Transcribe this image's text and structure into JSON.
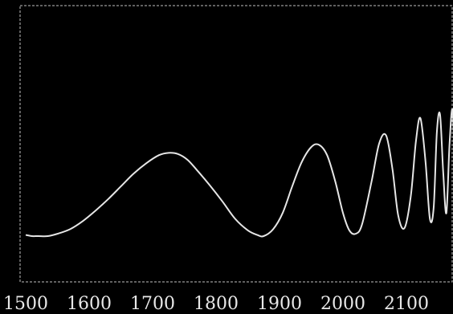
{
  "chart_data": {
    "type": "line",
    "title": "",
    "xlabel": "",
    "ylabel": "",
    "xlim": [
      1500,
      2180
    ],
    "ylim": [
      0,
      1
    ],
    "x_ticks": [
      1500,
      1600,
      1700,
      1800,
      1900,
      2000,
      2100
    ],
    "x_tick_labels": [
      "1500",
      "1600",
      "1700",
      "1800",
      "1900",
      "2000",
      "2100"
    ],
    "grid": false,
    "legend": "none",
    "frame_style": "dashed",
    "colors": {
      "background": "#000000",
      "line": "#e6e6e6",
      "frame": "#bfbfbf",
      "tick_text": "#e8e8e8"
    },
    "series": [
      {
        "x": [
          1500,
          1510,
          1520,
          1535,
          1550,
          1570,
          1590,
          1610,
          1630,
          1650,
          1670,
          1690,
          1710,
          1725,
          1740,
          1755,
          1770,
          1790,
          1810,
          1830,
          1850,
          1865,
          1875,
          1890,
          1905,
          1920,
          1935,
          1950,
          1962,
          1975,
          1988,
          2000,
          2010,
          2020,
          2030,
          2045,
          2057,
          2068,
          2078,
          2087,
          2097,
          2107,
          2115,
          2122,
          2130,
          2137,
          2143,
          2148,
          2153,
          2158,
          2163,
          2168,
          2173,
          2178
        ],
        "y": [
          0.01,
          0.0,
          0.0,
          0.0,
          0.02,
          0.06,
          0.13,
          0.22,
          0.32,
          0.43,
          0.54,
          0.63,
          0.7,
          0.72,
          0.71,
          0.66,
          0.57,
          0.44,
          0.3,
          0.15,
          0.05,
          0.01,
          0.0,
          0.06,
          0.2,
          0.43,
          0.64,
          0.77,
          0.79,
          0.7,
          0.47,
          0.2,
          0.05,
          0.02,
          0.1,
          0.47,
          0.8,
          0.87,
          0.58,
          0.18,
          0.07,
          0.35,
          0.82,
          1.02,
          0.65,
          0.15,
          0.25,
          0.9,
          1.05,
          0.55,
          0.2,
          0.8,
          1.08,
          0.3
        ]
      }
    ]
  }
}
